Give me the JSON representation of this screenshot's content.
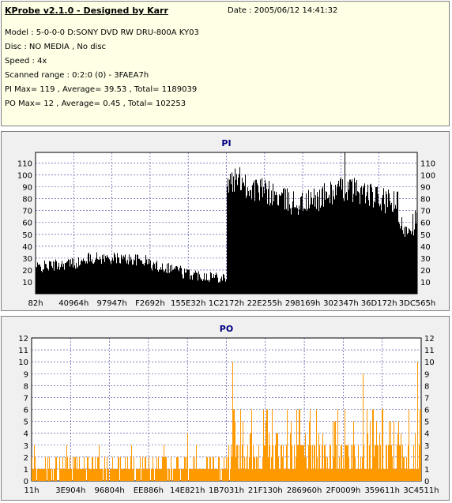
{
  "info": {
    "title": "KProbe v2.1.0 - Designed by Karr",
    "date": "Date : 2005/06/12 14:41:32",
    "lines": [
      "Model : 5-0-0-0 D:SONY    DVD RW DRU-800A  KY03",
      "Disc : NO MEDIA , No disc",
      "Speed : 4x",
      "Scanned range : 0:2:0 (0) - 3FAEA7h",
      "PI Max= 119 , Average= 39.53 , Total= 1189039",
      "PO Max= 12 , Average= 0.45 , Total= 102253"
    ]
  },
  "chart_data": [
    {
      "type": "bar",
      "title": "PI",
      "ylim": [
        0,
        119
      ],
      "yticks": [
        10,
        20,
        30,
        40,
        50,
        60,
        70,
        80,
        90,
        100,
        110
      ],
      "xticks": [
        "82h",
        "40964h",
        "97947h",
        "F2692h",
        "155E32h",
        "1C2172h",
        "22E255h",
        "298169h",
        "302347h",
        "36D172h",
        "3DC565h"
      ],
      "color": "#000000",
      "grid": true,
      "series": [
        {
          "segment": "before-layer-change",
          "x_fraction": [
            0.0,
            0.5
          ],
          "level": [
            22,
            28
          ]
        },
        {
          "segment": "after-layer-change",
          "x_fraction": [
            0.5,
            1.0
          ],
          "level": [
            88,
            90
          ]
        }
      ]
    },
    {
      "type": "bar",
      "title": "PO",
      "ylim": [
        0,
        12
      ],
      "yticks": [
        0,
        1,
        2,
        3,
        4,
        5,
        6,
        7,
        8,
        9,
        10,
        11,
        12
      ],
      "xticks": [
        "11h",
        "3E904h",
        "96804h",
        "EE886h",
        "14E821h",
        "1B7031h",
        "21F130h",
        "286960h",
        "2F0009h",
        "359611h",
        "3C4511h"
      ],
      "color": "#ff9900",
      "grid": true,
      "series": [
        {
          "segment": "before-layer-change",
          "x_fraction": [
            0.0,
            0.51
          ],
          "level": [
            0,
            2
          ]
        },
        {
          "segment": "after-layer-change",
          "x_fraction": [
            0.51,
            1.0
          ],
          "level": [
            2,
            4
          ]
        }
      ]
    }
  ]
}
